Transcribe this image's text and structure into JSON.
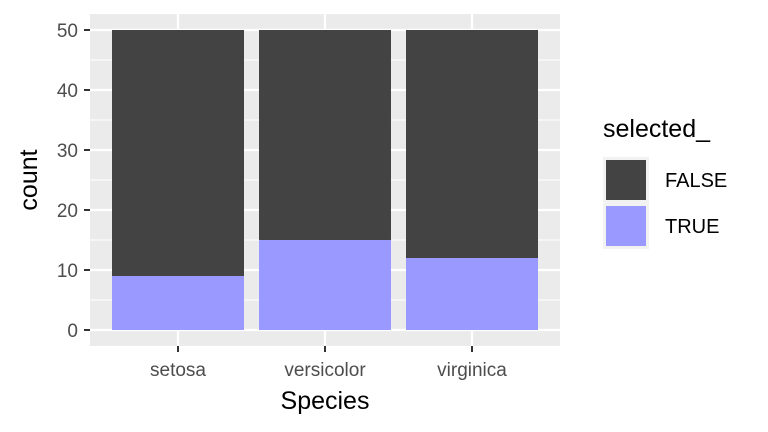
{
  "chart_data": {
    "type": "bar",
    "stacked": true,
    "categories": [
      "setosa",
      "versicolor",
      "virginica"
    ],
    "series": [
      {
        "name": "FALSE",
        "color": "#434343",
        "values": [
          41,
          35,
          38
        ]
      },
      {
        "name": "TRUE",
        "color": "#9999ff",
        "values": [
          9,
          15,
          12
        ]
      }
    ],
    "xlabel": "Species",
    "ylabel": "count",
    "ylim": [
      0,
      50
    ],
    "yticks": [
      "0",
      "10",
      "20",
      "30",
      "40",
      "50"
    ],
    "grid": true,
    "panel_background": "#ebebeb",
    "legend": {
      "title": "selected_",
      "position": "right",
      "entries": [
        "FALSE",
        "TRUE"
      ]
    }
  }
}
